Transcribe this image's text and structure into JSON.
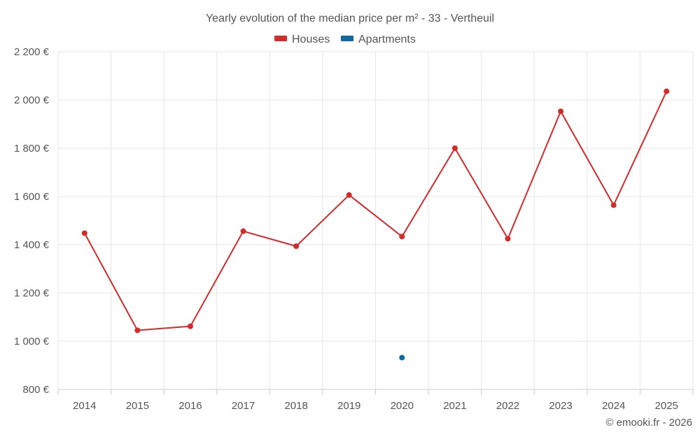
{
  "chart_data": {
    "type": "line",
    "title": "Yearly evolution of the median price per m² - 33 - Vertheuil",
    "categories": [
      "2014",
      "2015",
      "2016",
      "2017",
      "2018",
      "2019",
      "2020",
      "2021",
      "2022",
      "2023",
      "2024",
      "2025"
    ],
    "series": [
      {
        "name": "Houses",
        "color": "#d32a2a",
        "values": [
          1448,
          1045,
          1062,
          1456,
          1394,
          1606,
          1434,
          1800,
          1425,
          1953,
          1564,
          2036
        ]
      },
      {
        "name": "Apartments",
        "color": "#0a6aa1",
        "values": [
          null,
          null,
          null,
          null,
          null,
          null,
          932,
          null,
          null,
          null,
          null,
          null
        ]
      }
    ],
    "ylim": [
      800,
      2200
    ],
    "yticks": [
      800,
      1000,
      1200,
      1400,
      1600,
      1800,
      2000,
      2200
    ],
    "ytick_labels": [
      "800 €",
      "1 000 €",
      "1 200 €",
      "1 400 €",
      "1 600 €",
      "1 800 €",
      "2 000 €",
      "2 200 €"
    ],
    "xlabel": "",
    "ylabel": "",
    "grid": true,
    "legend_position": "top-center"
  },
  "credit": "© emooki.fr - 2026"
}
